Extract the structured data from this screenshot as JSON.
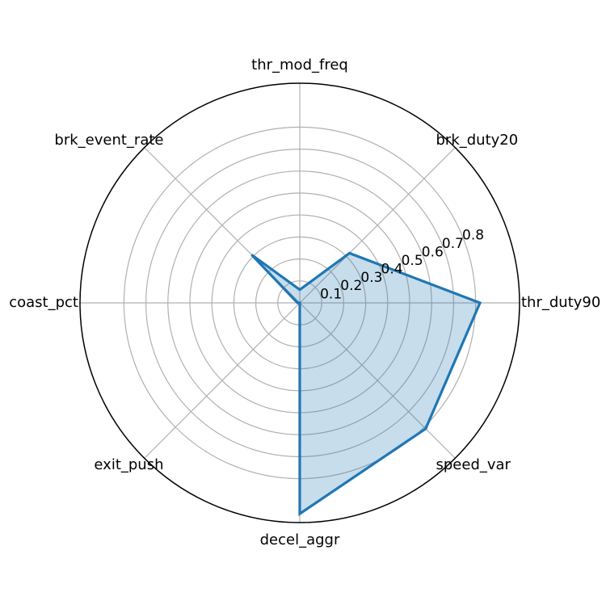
{
  "chart_data": {
    "type": "radar",
    "categories": [
      "thr_duty90",
      "brk_duty20",
      "thr_mod_freq",
      "brk_event_rate",
      "coast_pct",
      "exit_push",
      "decel_aggr",
      "speed_var"
    ],
    "series": [
      {
        "values": [
          0.82,
          0.32,
          0.06,
          0.31,
          0.01,
          0.0,
          0.96,
          0.81
        ],
        "color": "#1f77b4",
        "fill_opacity": 0.25
      }
    ],
    "radial_ticks": [
      0.1,
      0.2,
      0.3,
      0.4,
      0.5,
      0.6,
      0.7,
      0.8
    ],
    "radial_tick_labels": [
      "0.1",
      "0.2",
      "0.3",
      "0.4",
      "0.5",
      "0.6",
      "0.7",
      "0.8"
    ],
    "rlim": [
      0,
      1.0
    ],
    "grid": true,
    "title": "",
    "legend": null
  }
}
